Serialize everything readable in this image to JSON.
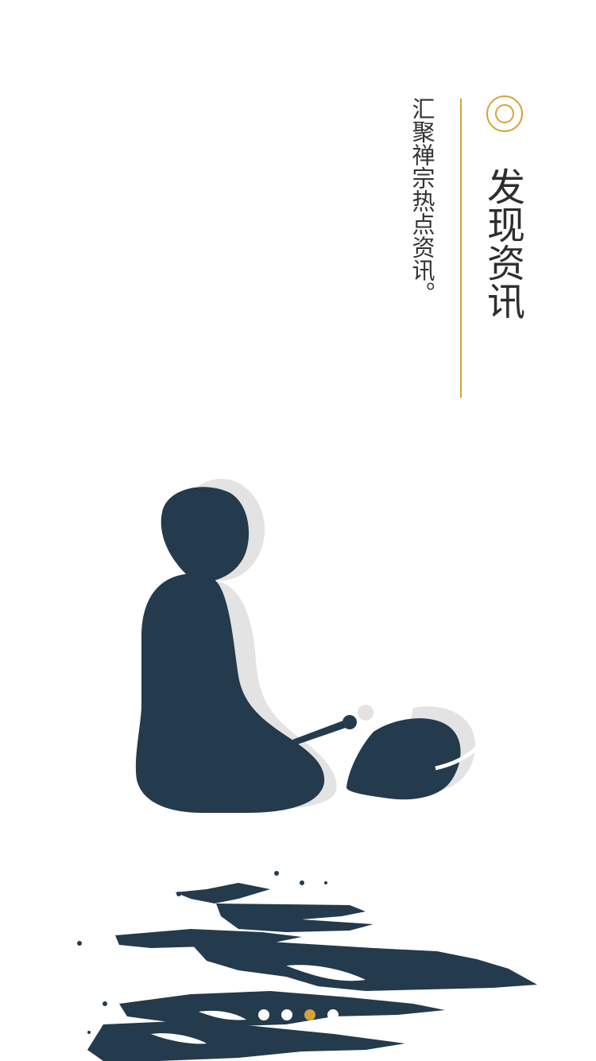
{
  "page": {
    "title": "发现资讯",
    "subtitle": "汇聚禅宗热点资讯。"
  },
  "illustration": {
    "icon": "meditating-monk-illustration",
    "color": "#243a4d",
    "shadow_color": "#e3e3e3"
  },
  "decoration": {
    "icon": "ink-brush-splash",
    "color": "#243a4d"
  },
  "accent_color": "#d6a33a",
  "pager": {
    "count": 4,
    "active_index": 2
  }
}
